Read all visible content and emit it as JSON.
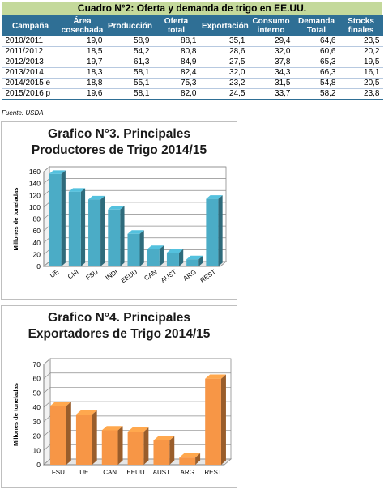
{
  "table": {
    "title": "Cuadro N°2: Oferta y demanda de trigo en EE.UU.",
    "headers": [
      "Campaña",
      "Área cosechada",
      "Producción",
      "Oferta total",
      "Exportación",
      "Consumo interno",
      "Demanda Total",
      "Stocks finales"
    ],
    "rows": [
      [
        "2010/2011",
        "19,0",
        "58,9",
        "88,1",
        "35,1",
        "29,4",
        "64,6",
        "23,5"
      ],
      [
        "2011/2012",
        "18,5",
        "54,2",
        "80,8",
        "28,6",
        "32,0",
        "60,6",
        "20,2"
      ],
      [
        "2012/2013",
        "19,7",
        "61,3",
        "84,9",
        "27,5",
        "37,8",
        "65,3",
        "19,5"
      ],
      [
        "2013/2014",
        "18,3",
        "58,1",
        "82,4",
        "32,0",
        "34,3",
        "66,3",
        "16,1"
      ],
      [
        "2014/2015 e",
        "18,8",
        "55,1",
        "75,3",
        "23,2",
        "31,5",
        "54,8",
        "20,5"
      ],
      [
        "2015/2016 p",
        "19,6",
        "58,1",
        "82,0",
        "24,5",
        "33,7",
        "58,2",
        "23,8"
      ]
    ],
    "source": "Fuente: USDA"
  },
  "chart_data": [
    {
      "type": "bar",
      "title": "Grafico N°3. Principales Productores de Trigo 2014/15",
      "title_lines": [
        "Grafico N°3. Principales",
        "Productores de Trigo 2014/15"
      ],
      "ylabel": "Millones de toneladas",
      "xlabel": "",
      "categories": [
        "UE",
        "CHI",
        "FSU",
        "INDI",
        "EEUU",
        "CAN",
        "AUST",
        "ARG",
        "REST"
      ],
      "values": [
        156,
        126,
        113,
        96,
        55,
        29,
        23,
        12,
        114
      ],
      "ylim": [
        0,
        160
      ],
      "yticks": [
        0,
        20,
        40,
        60,
        80,
        100,
        120,
        140,
        160
      ],
      "bar_color": "#4bacc6",
      "grid": true
    },
    {
      "type": "bar",
      "title": "Grafico N°4. Principales Exportadores de Trigo 2014/15",
      "title_lines": [
        "Grafico N°4. Principales",
        "Exportadores de Trigo 2014/15"
      ],
      "ylabel": "Millones de toneladas",
      "xlabel": "",
      "categories": [
        "FSU",
        "UE",
        "CAN",
        "EEUU",
        "AUST",
        "ARG",
        "REST"
      ],
      "values": [
        41,
        35,
        24,
        23,
        17,
        5,
        60
      ],
      "ylim": [
        0,
        70
      ],
      "yticks": [
        0,
        10,
        20,
        30,
        40,
        50,
        60,
        70
      ],
      "bar_color": "#f79646",
      "grid": true
    }
  ]
}
